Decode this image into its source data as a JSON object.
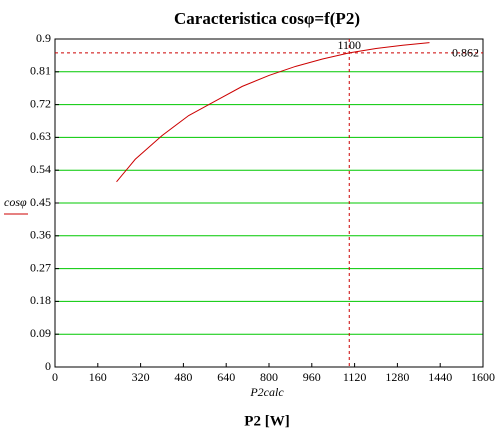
{
  "chart_data": {
    "type": "line",
    "title": "Caracteristica cosφ=f(P2)",
    "x_label": "P2 [W]",
    "x_var": "P2calc",
    "x": [
      230,
      300,
      400,
      500,
      600,
      700,
      800,
      900,
      1000,
      1100,
      1200,
      1300,
      1400
    ],
    "series": [
      {
        "name": "cosφ",
        "color": "#cc0000",
        "values": [
          0.508,
          0.57,
          0.635,
          0.69,
          0.73,
          0.77,
          0.8,
          0.825,
          0.845,
          0.862,
          0.874,
          0.883,
          0.89
        ]
      }
    ],
    "xlim": [
      0,
      1600
    ],
    "xticks": [
      0,
      160,
      320,
      480,
      640,
      800,
      960,
      1120,
      1280,
      1440,
      1600
    ],
    "ylim": [
      0,
      0.9
    ],
    "yticks": [
      0,
      0.09,
      0.18,
      0.27,
      0.36,
      0.45,
      0.54,
      0.63,
      0.72,
      0.81,
      0.9
    ],
    "grid": true,
    "grid_color": "#00c800",
    "x_marker": 1100,
    "y_marker": 0.862
  }
}
